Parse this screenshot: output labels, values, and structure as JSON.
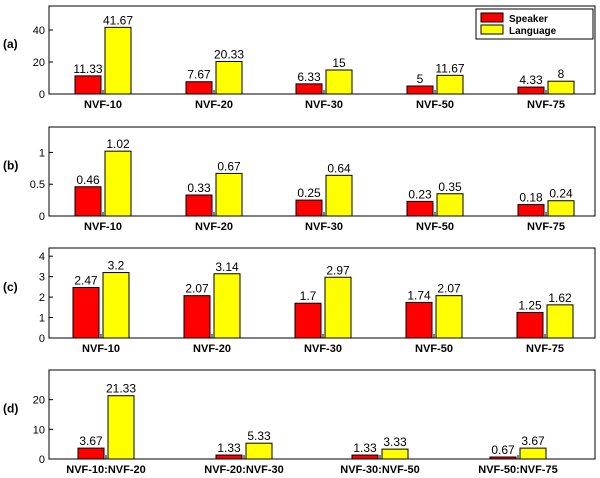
{
  "legend": {
    "placement": "top-right",
    "entries": [
      {
        "name": "Speaker",
        "color": "#ff0000"
      },
      {
        "name": "Language",
        "color": "#ffff00"
      }
    ]
  },
  "chart_data": [
    {
      "type": "bar",
      "panel_label": "(a)",
      "categories": [
        "NVF-10",
        "NVF-20",
        "NVF-30",
        "NVF-50",
        "NVF-75"
      ],
      "series": [
        {
          "name": "Speaker",
          "values": [
            11.33,
            7.67,
            6.33,
            5,
            4.33
          ],
          "labels": [
            "11.33",
            "7.67",
            "6.33",
            "5",
            "4.33"
          ]
        },
        {
          "name": "Language",
          "values": [
            41.67,
            20.33,
            15,
            11.67,
            8
          ],
          "labels": [
            "41.67",
            "20.33",
            "15",
            "11.67",
            "8"
          ]
        }
      ],
      "ylim": [
        0,
        55
      ],
      "yticks": [
        0,
        20,
        40
      ],
      "ytick_labels": [
        "0",
        "20",
        "40"
      ],
      "grid": false,
      "legend": true
    },
    {
      "type": "bar",
      "panel_label": "(b)",
      "categories": [
        "NVF-10",
        "NVF-20",
        "NVF-30",
        "NVF-50",
        "NVF-75"
      ],
      "series": [
        {
          "name": "Speaker",
          "values": [
            0.46,
            0.33,
            0.25,
            0.23,
            0.18
          ],
          "labels": [
            "0.46",
            "0.33",
            "0.25",
            "0.23",
            "0.18"
          ]
        },
        {
          "name": "Language",
          "values": [
            1.02,
            0.67,
            0.64,
            0.35,
            0.24
          ],
          "labels": [
            "1.02",
            "0.67",
            "0.64",
            "0.35",
            "0.24"
          ]
        }
      ],
      "ylim": [
        0,
        1.4
      ],
      "yticks": [
        0,
        0.5,
        1
      ],
      "ytick_labels": [
        "0",
        "0.5",
        "1"
      ],
      "grid": false,
      "legend": false
    },
    {
      "type": "bar",
      "panel_label": "(c)",
      "categories": [
        "NVF-10",
        "NVF-20",
        "NVF-30",
        "NVF-50",
        "NVF-75"
      ],
      "series": [
        {
          "name": "Speaker",
          "values": [
            2.47,
            2.07,
            1.7,
            1.74,
            1.25
          ],
          "labels": [
            "2.47",
            "2.07",
            "1.7",
            "1.74",
            "1.25"
          ]
        },
        {
          "name": "Language",
          "values": [
            3.2,
            3.14,
            2.97,
            2.07,
            1.62
          ],
          "labels": [
            "3.2",
            "3.14",
            "2.97",
            "2.07",
            "1.62"
          ]
        }
      ],
      "ylim": [
        0,
        4.4
      ],
      "yticks": [
        0,
        1,
        2,
        3,
        4
      ],
      "ytick_labels": [
        "0",
        "1",
        "2",
        "3",
        "4"
      ],
      "grid": false,
      "legend": false
    },
    {
      "type": "bar",
      "panel_label": "(d)",
      "categories": [
        "NVF-10:NVF-20",
        "NVF-20:NVF-30",
        "NVF-30:NVF-50",
        "NVF-50:NVF-75"
      ],
      "series": [
        {
          "name": "Speaker",
          "values": [
            3.67,
            1.33,
            1.33,
            0.67
          ],
          "labels": [
            "3.67",
            "1.33",
            "1.33",
            "0.67"
          ]
        },
        {
          "name": "Language",
          "values": [
            21.33,
            5.33,
            3.33,
            3.67
          ],
          "labels": [
            "21.33",
            "5.33",
            "3.33",
            "3.67"
          ]
        }
      ],
      "ylim": [
        0,
        30
      ],
      "yticks": [
        0,
        10,
        20
      ],
      "ytick_labels": [
        "0",
        "10",
        "20"
      ],
      "grid": false,
      "legend": false
    }
  ]
}
